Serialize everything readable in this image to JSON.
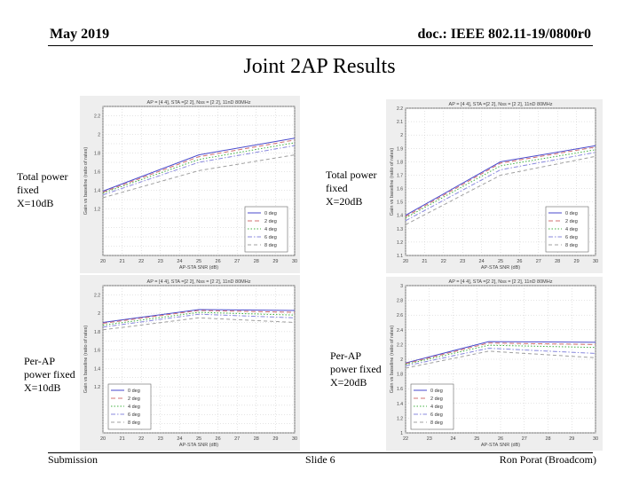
{
  "header": {
    "date": "May 2019",
    "doc": "doc.: IEEE 802.11-19/0800r0"
  },
  "slide_title": "Joint 2AP Results",
  "labels": {
    "tl": [
      "Total power",
      "fixed",
      "X=10dB"
    ],
    "tr": [
      "Total power",
      "fixed",
      "X=20dB"
    ],
    "bl": [
      "Per-AP",
      "power fixed",
      "X=10dB"
    ],
    "br": [
      "Per-AP",
      "power fixed",
      "X=20dB"
    ]
  },
  "footer": {
    "left": "Submission",
    "center": "Slide 6",
    "right": "Ron Porat (Broadcom)"
  },
  "colors": {
    "series": [
      "#4a4acc",
      "#d07070",
      "#40b040",
      "#8888dd",
      "#a0a0a0",
      "#333333"
    ]
  },
  "chart_data": [
    {
      "id": "tl",
      "type": "line",
      "title": "AP = [4 4], STA =[2 2], Nss = [2 2], 11nD 80MHz",
      "xlabel": "AP-STA SNR (dB)",
      "ylabel": "Gain vs baseline (ratio of rates)",
      "xlim": [
        20,
        30
      ],
      "ylim": [
        0.7,
        2.3
      ],
      "xticks": [
        20,
        21,
        22,
        23,
        24,
        25,
        26,
        27,
        28,
        29,
        30
      ],
      "yticks": [
        0.7,
        0.8,
        0.9,
        1,
        1.1,
        1.2,
        1.3,
        1.4,
        1.5,
        1.6,
        1.7,
        1.8,
        1.9,
        2,
        2.1,
        2.2,
        2.3
      ],
      "ytick_labels": [
        "",
        "",
        "",
        "",
        "",
        "1.2",
        "",
        "1.4",
        "",
        "1.6",
        "",
        "1.8",
        "",
        "2",
        "",
        "2.2",
        ""
      ],
      "legend_position": "lower-right",
      "x": [
        20,
        25,
        30
      ],
      "series": [
        {
          "name": "0 deg",
          "values": [
            1.39,
            1.78,
            1.96
          ]
        },
        {
          "name": "2 deg",
          "values": [
            1.38,
            1.76,
            1.94
          ]
        },
        {
          "name": "4 deg",
          "values": [
            1.37,
            1.73,
            1.91
          ]
        },
        {
          "name": "6 deg",
          "values": [
            1.35,
            1.7,
            1.88
          ]
        },
        {
          "name": "8 deg",
          "values": [
            1.32,
            1.61,
            1.78
          ]
        }
      ]
    },
    {
      "id": "tr",
      "type": "line",
      "title": "AP = [4 4], STA =[2 2], Nss = [2 2], 11nD 80MHz",
      "xlabel": "AP-STA SNR (dB)",
      "ylabel": "Gain vs baseline (ratio of rates)",
      "xlim": [
        20,
        30
      ],
      "ylim": [
        1.1,
        2.2
      ],
      "xticks": [
        20,
        21,
        22,
        23,
        24,
        25,
        26,
        27,
        28,
        29,
        30
      ],
      "yticks": [
        1.1,
        1.2,
        1.3,
        1.4,
        1.5,
        1.6,
        1.7,
        1.8,
        1.9,
        2,
        2.1,
        2.2
      ],
      "ytick_labels": [
        "1.1",
        "1.2",
        "1.3",
        "1.4",
        "1.5",
        "1.6",
        "1.7",
        "1.8",
        "1.9",
        "2",
        "2.1",
        "2.2"
      ],
      "legend_position": "lower-right",
      "x": [
        20,
        25,
        30
      ],
      "series": [
        {
          "name": "0 deg",
          "values": [
            1.4,
            1.8,
            1.92
          ]
        },
        {
          "name": "2 deg",
          "values": [
            1.39,
            1.79,
            1.91
          ]
        },
        {
          "name": "4 deg",
          "values": [
            1.38,
            1.77,
            1.89
          ]
        },
        {
          "name": "6 deg",
          "values": [
            1.36,
            1.74,
            1.87
          ]
        },
        {
          "name": "8 deg",
          "values": [
            1.33,
            1.7,
            1.84
          ]
        }
      ]
    },
    {
      "id": "bl",
      "type": "line",
      "title": "AP = [4 4], STA =[2 2], Nss = [2 2], 11nD 80MHz",
      "xlabel": "AP-STA SNR (dB)",
      "ylabel": "Gain vs baseline (ratio of rates)",
      "xlim": [
        20,
        30
      ],
      "ylim": [
        0.7,
        2.3
      ],
      "xticks": [
        20,
        21,
        22,
        23,
        24,
        25,
        26,
        27,
        28,
        29,
        30
      ],
      "yticks": [
        0.7,
        0.8,
        0.9,
        1,
        1.1,
        1.2,
        1.3,
        1.4,
        1.5,
        1.6,
        1.7,
        1.8,
        1.9,
        2,
        2.1,
        2.2,
        2.3
      ],
      "ytick_labels": [
        "",
        "",
        "",
        "",
        "",
        "1.2",
        "",
        "1.4",
        "",
        "1.6",
        "",
        "1.8",
        "",
        "2",
        "",
        "2.2",
        ""
      ],
      "legend_position": "lower-left",
      "x": [
        20,
        25,
        30
      ],
      "series": [
        {
          "name": "0 deg",
          "values": [
            1.9,
            2.04,
            2.03
          ]
        },
        {
          "name": "2 deg",
          "values": [
            1.89,
            2.03,
            2.01
          ]
        },
        {
          "name": "4 deg",
          "values": [
            1.87,
            2.01,
            1.98
          ]
        },
        {
          "name": "6 deg",
          "values": [
            1.85,
            1.99,
            1.95
          ]
        },
        {
          "name": "8 deg",
          "values": [
            1.82,
            1.95,
            1.9
          ]
        }
      ]
    },
    {
      "id": "br",
      "type": "line",
      "title": "AP = [4 4], STA =[2 2], Nss = [2 2], 11nD 80MHz",
      "xlabel": "AP-STA SNR (dB)",
      "ylabel": "Gain vs baseline (ratio of rates)",
      "xlim": [
        22,
        30
      ],
      "ylim": [
        1,
        3
      ],
      "xticks": [
        22,
        23,
        24,
        25,
        26,
        27,
        28,
        29,
        30
      ],
      "yticks": [
        1,
        1.2,
        1.4,
        1.6,
        1.8,
        2,
        2.2,
        2.4,
        2.6,
        2.8,
        3
      ],
      "ytick_labels": [
        "1",
        "1.2",
        "1.4",
        "1.6",
        "1.8",
        "2",
        "2.2",
        "2.4",
        "2.6",
        "2.8",
        "3"
      ],
      "legend_position": "lower-left",
      "x": [
        22,
        25.5,
        30
      ],
      "series": [
        {
          "name": "0 deg",
          "values": [
            1.95,
            2.24,
            2.23
          ]
        },
        {
          "name": "2 deg",
          "values": [
            1.94,
            2.22,
            2.2
          ]
        },
        {
          "name": "4 deg",
          "values": [
            1.93,
            2.19,
            2.16
          ]
        },
        {
          "name": "6 deg",
          "values": [
            1.91,
            2.15,
            2.08
          ]
        },
        {
          "name": "8 deg",
          "values": [
            1.88,
            2.11,
            2.02
          ]
        }
      ]
    }
  ]
}
